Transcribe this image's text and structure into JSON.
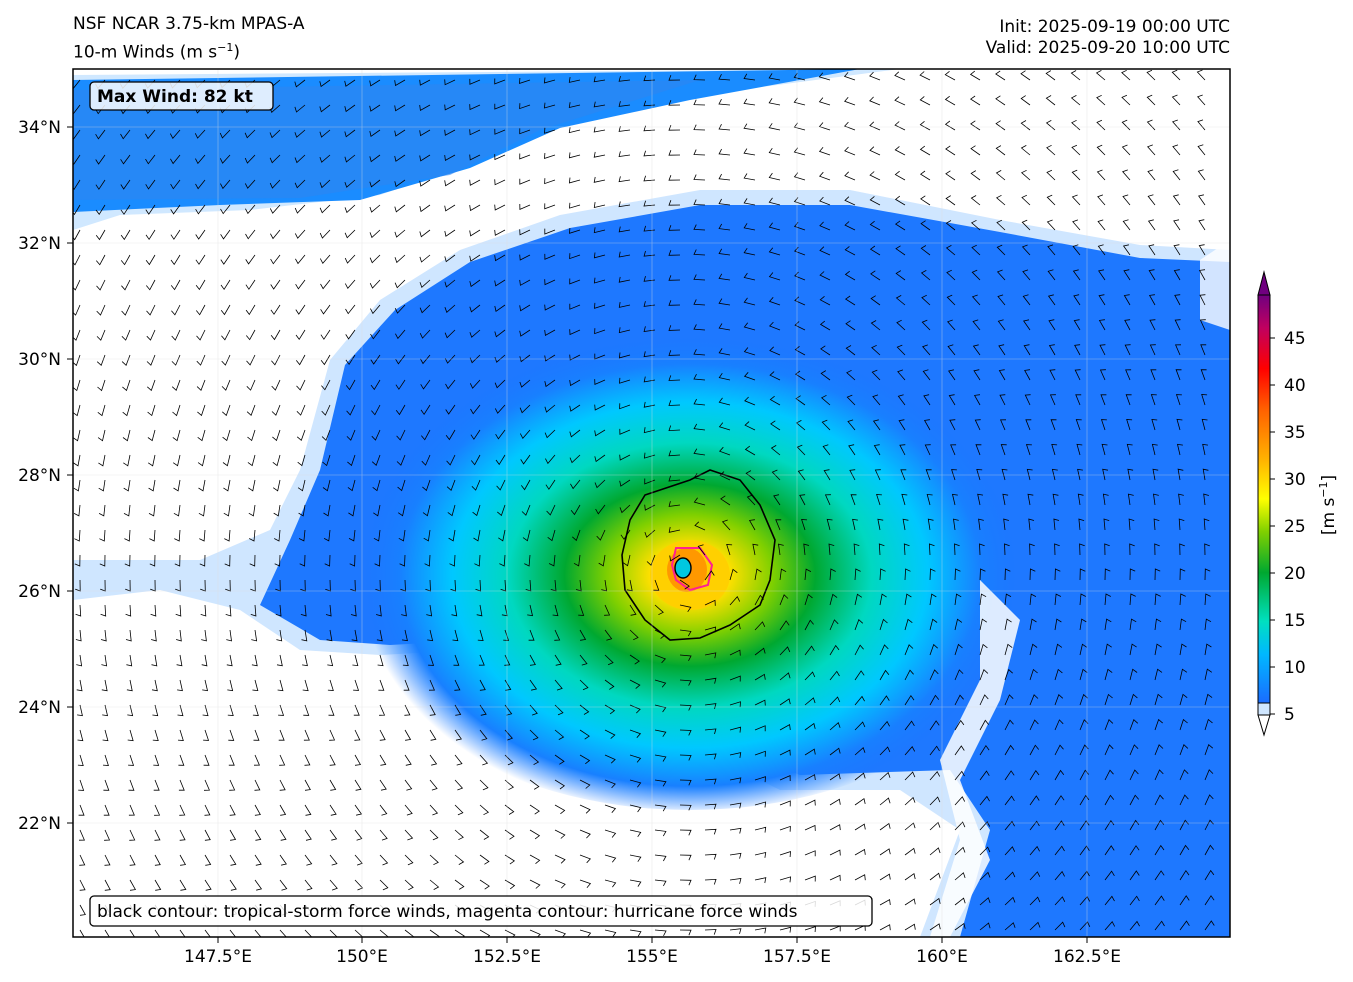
{
  "header": {
    "model": "NSF NCAR 3.75-km MPAS-A",
    "field": "10-m Winds (m s",
    "field_unit_exp": "−1",
    "field_close": ")",
    "init": "Init: 2025-09-19 00:00 UTC",
    "valid": "Valid: 2025-09-20 10:00 UTC"
  },
  "annotations": {
    "max_wind": "Max Wind: 82 kt",
    "legend_note": "black contour: tropical-storm force winds, magenta contour: hurricane force winds"
  },
  "axes": {
    "lon_labels": [
      "147.5°E",
      "150°E",
      "152.5°E",
      "155°E",
      "157.5°E",
      "160°E",
      "162.5°E"
    ],
    "lat_labels": [
      "34°N",
      "32°N",
      "30°N",
      "28°N",
      "26°N",
      "24°N",
      "22°N"
    ]
  },
  "colorbar": {
    "ticks": [
      "5",
      "10",
      "15",
      "20",
      "25",
      "30",
      "35",
      "40",
      "45"
    ],
    "label": "[m s",
    "label_exp": "−1",
    "label_close": "]",
    "min": 5,
    "max": 48,
    "colors": [
      "#d8ecff",
      "#0066ff",
      "#00ccff",
      "#00e0c0",
      "#00a830",
      "#40c000",
      "#ffff00",
      "#ffb000",
      "#ff6000",
      "#ff0000",
      "#c00060",
      "#600080"
    ]
  },
  "storm": {
    "center_lon": 155.7,
    "center_lat": 26.4
  }
}
